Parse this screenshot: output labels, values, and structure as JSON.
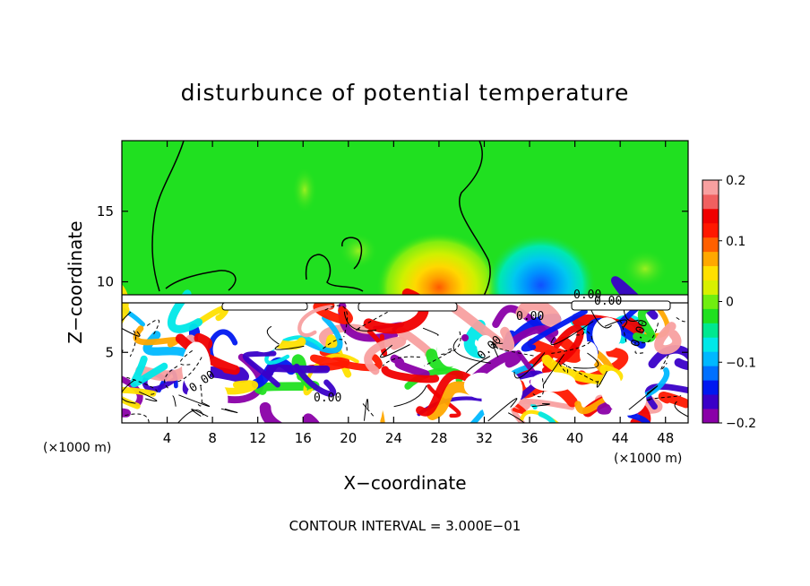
{
  "chart_data": {
    "type": "heatmap",
    "title": "disturbunce of potential temperature",
    "xlabel": "X−coordinate",
    "ylabel": "Z−coordinate",
    "x_unit_left": "(×1000 m)",
    "x_unit_right": "(×1000 m)",
    "xlim": [
      0,
      50
    ],
    "ylim": [
      0,
      20
    ],
    "x_ticks": [
      4,
      8,
      12,
      16,
      20,
      24,
      28,
      32,
      36,
      40,
      44,
      48
    ],
    "x_tick_labels": [
      "4",
      "8",
      "12",
      "16",
      "20",
      "24",
      "28",
      "32",
      "36",
      "40",
      "44",
      "48"
    ],
    "y_ticks": [
      5,
      10,
      15
    ],
    "y_tick_labels": [
      "5",
      "10",
      "15"
    ],
    "colorbar": {
      "range": [
        -0.2,
        0.2
      ],
      "ticks": [
        0.2,
        0.1,
        0,
        -0.1,
        -0.2
      ],
      "tick_labels": [
        "0.2",
        "0.1",
        "0",
        "−0.1",
        "−0.2"
      ],
      "colors": [
        "#8a00a8",
        "#3a00c8",
        "#0018f0",
        "#0070ff",
        "#00b8ff",
        "#00e8e8",
        "#00e890",
        "#20e020",
        "#70ee10",
        "#d8f000",
        "#ffe000",
        "#ffa800",
        "#ff6000",
        "#ff1800",
        "#f00000",
        "#f06060",
        "#f8a0a0"
      ]
    },
    "contour_labels": [
      "0.00",
      "0.00",
      "0.00",
      "0.00",
      "0.00",
      "0.00",
      "0.00"
    ],
    "background_value": 0,
    "warm_anomaly": {
      "x": 28,
      "z": 10,
      "value": 0.1
    },
    "cool_anomaly": {
      "x": 37,
      "z": 10.5,
      "value": -0.08
    },
    "footer": "CONTOUR INTERVAL = 3.000E−01"
  }
}
